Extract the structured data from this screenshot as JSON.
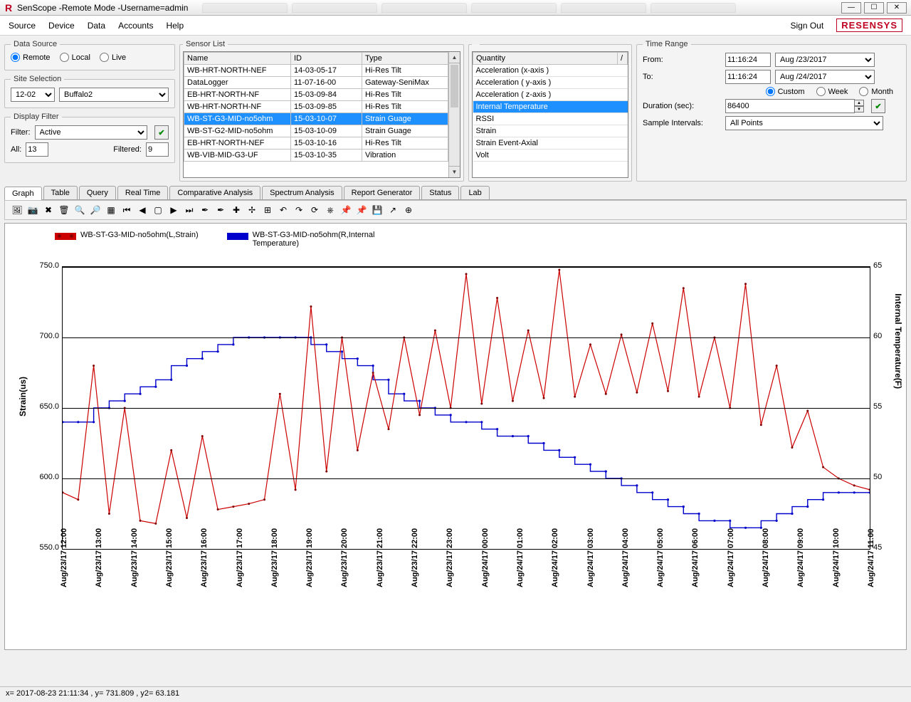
{
  "window": {
    "title": "SenScope -Remote Mode -Username=admin",
    "win_min": "—",
    "win_max": "☐",
    "win_close": "✕"
  },
  "menu": {
    "items": [
      "Source",
      "Device",
      "Data",
      "Accounts",
      "Help"
    ],
    "sign_out": "Sign Out",
    "brand": "RESENSYS"
  },
  "data_source": {
    "legend": "Data Source",
    "options": [
      "Remote",
      "Local",
      "Live"
    ],
    "selected": "Remote"
  },
  "site_selection": {
    "legend": "Site Selection",
    "combo1": "12-02",
    "combo2": "Buffalo2"
  },
  "display_filter": {
    "legend": "Display Filter",
    "filter_label": "Filter:",
    "filter_value": "Active",
    "all_label": "All:",
    "all_value": "13",
    "filtered_label": "Filtered:",
    "filtered_value": "9"
  },
  "sensor_list": {
    "legend": "Sensor List",
    "columns": [
      "Name",
      "ID",
      "Type"
    ],
    "rows": [
      {
        "name": "WB-HRT-NORTH-NEF",
        "id": "14-03-05-17",
        "type": "Hi-Res Tilt"
      },
      {
        "name": "DataLogger",
        "id": "11-07-16-00",
        "type": "Gateway-SeniMax"
      },
      {
        "name": "EB-HRT-NORTH-NF",
        "id": "15-03-09-84",
        "type": "Hi-Res Tilt"
      },
      {
        "name": "WB-HRT-NORTH-NF",
        "id": "15-03-09-85",
        "type": "Hi-Res Tilt"
      },
      {
        "name": "WB-ST-G3-MID-no5ohm",
        "id": "15-03-10-07",
        "type": "Strain Guage",
        "selected": true
      },
      {
        "name": "WB-ST-G2-MID-no5ohm",
        "id": "15-03-10-09",
        "type": "Strain Guage"
      },
      {
        "name": "EB-HRT-NORTH-NEF",
        "id": "15-03-10-16",
        "type": "Hi-Res Tilt"
      },
      {
        "name": "WB-VIB-MID-G3-UF",
        "id": "15-03-10-35",
        "type": "Vibration"
      }
    ]
  },
  "quantity": {
    "header": "Quantity",
    "items": [
      "Acceleration (x-axis )",
      "Acceleration ( y-axis )",
      "Acceleration ( z-axis )",
      "Internal Temperature",
      "RSSI",
      "Strain",
      "Strain Event-Axial",
      "Volt"
    ],
    "selected_index": 3
  },
  "time_range": {
    "legend": "Time Range",
    "from_label": "From:",
    "from_time": "11:16:24",
    "from_date": "Aug /23/2017",
    "to_label": "To:",
    "to_time": "11:16:24",
    "to_date": "Aug /24/2017",
    "mode_options": [
      "Custom",
      "Week",
      "Month"
    ],
    "mode_selected": "Custom",
    "duration_label": "Duration (sec):",
    "duration_value": "86400",
    "sample_label": "Sample Intervals:",
    "sample_value": "All Points"
  },
  "tabs": {
    "items": [
      "Graph",
      "Table",
      "Query",
      "Real Time",
      "Comparative Analysis",
      "Spectrum Analysis",
      "Report Generator",
      "Status",
      "Lab"
    ],
    "active": "Graph"
  },
  "toolbar_icons": [
    "🖼",
    "📷",
    "✖",
    "🗑",
    "🔍",
    "🔎",
    "▦",
    "⏮",
    "◀",
    "▢",
    "▶",
    "⏭",
    "✒",
    "✒",
    "✚",
    "✢",
    "⊞",
    "↶",
    "↷",
    "⟳",
    "⎈",
    "📌",
    "📌",
    "💾",
    "↗",
    "⊕"
  ],
  "chart": {
    "legend_a": "WB-ST-G3-MID-no5ohm(L,Strain)",
    "legend_b": "WB-ST-G3-MID-no5ohm(R,Internal Temperature)",
    "ylabel_left": "Strain(us)",
    "ylabel_right": "Internal Temperature(F)",
    "yticks_left": [
      550,
      600,
      650,
      700,
      750
    ],
    "yticks_right": [
      45,
      50,
      55,
      60,
      65
    ],
    "ylim_left": [
      550,
      750
    ],
    "ylim_right": [
      45,
      65
    ],
    "xticks": [
      "Aug/23/17 12:00",
      "Aug/23/17 13:00",
      "Aug/23/17 14:00",
      "Aug/23/17 15:00",
      "Aug/23/17 16:00",
      "Aug/23/17 17:00",
      "Aug/23/17 18:00",
      "Aug/23/17 19:00",
      "Aug/23/17 20:00",
      "Aug/23/17 21:00",
      "Aug/23/17 22:00",
      "Aug/23/17 23:00",
      "Aug/24/17 00:00",
      "Aug/24/17 01:00",
      "Aug/24/17 02:00",
      "Aug/24/17 03:00",
      "Aug/24/17 04:00",
      "Aug/24/17 05:00",
      "Aug/24/17 06:00",
      "Aug/24/17 07:00",
      "Aug/24/17 08:00",
      "Aug/24/17 09:00",
      "Aug/24/17 10:00",
      "Aug/24/17 11:00"
    ],
    "color_a": "#cc0000",
    "color_b": "#0000cc",
    "grid_color": "#000000",
    "background": "#ffffff",
    "line_width": 1.2,
    "marker_radius": 1.5,
    "series_b": [
      54,
      54,
      54,
      55,
      55.5,
      56,
      56.5,
      57,
      58,
      58.5,
      59,
      59.5,
      60,
      60,
      60,
      60,
      60,
      59.5,
      59,
      58.5,
      58,
      57,
      56,
      55.5,
      55,
      54.5,
      54,
      54,
      53.5,
      53,
      53,
      52.5,
      52,
      51.5,
      51,
      50.5,
      50,
      49.5,
      49,
      48.5,
      48,
      47.5,
      47,
      47,
      46.5,
      46.5,
      47,
      47.5,
      48,
      48.5,
      49,
      49,
      49
    ],
    "series_a_base": [
      590,
      585,
      580,
      575,
      572,
      570,
      568,
      570,
      572,
      575,
      578,
      580,
      582,
      585,
      588,
      592,
      598,
      605,
      612,
      620,
      628,
      635,
      640,
      645,
      648,
      650,
      652,
      653,
      655,
      655,
      656,
      657,
      658,
      658,
      659,
      660,
      660,
      661,
      662,
      662,
      660,
      658,
      655,
      650,
      645,
      638,
      630,
      622,
      615,
      608,
      600,
      595,
      592
    ],
    "series_a_spikes": [
      {
        "i": 2,
        "v": 680
      },
      {
        "i": 4,
        "v": 650
      },
      {
        "i": 7,
        "v": 620
      },
      {
        "i": 9,
        "v": 630
      },
      {
        "i": 14,
        "v": 660
      },
      {
        "i": 16,
        "v": 722
      },
      {
        "i": 18,
        "v": 700
      },
      {
        "i": 20,
        "v": 675
      },
      {
        "i": 22,
        "v": 700
      },
      {
        "i": 24,
        "v": 705
      },
      {
        "i": 26,
        "v": 745
      },
      {
        "i": 28,
        "v": 728
      },
      {
        "i": 30,
        "v": 705
      },
      {
        "i": 32,
        "v": 748
      },
      {
        "i": 34,
        "v": 695
      },
      {
        "i": 36,
        "v": 702
      },
      {
        "i": 38,
        "v": 710
      },
      {
        "i": 40,
        "v": 735
      },
      {
        "i": 42,
        "v": 700
      },
      {
        "i": 44,
        "v": 738
      },
      {
        "i": 46,
        "v": 680
      },
      {
        "i": 48,
        "v": 648
      }
    ]
  },
  "status_bar": "x= 2017-08-23 21:11:34 , y= 731.809 , y2= 63.181"
}
